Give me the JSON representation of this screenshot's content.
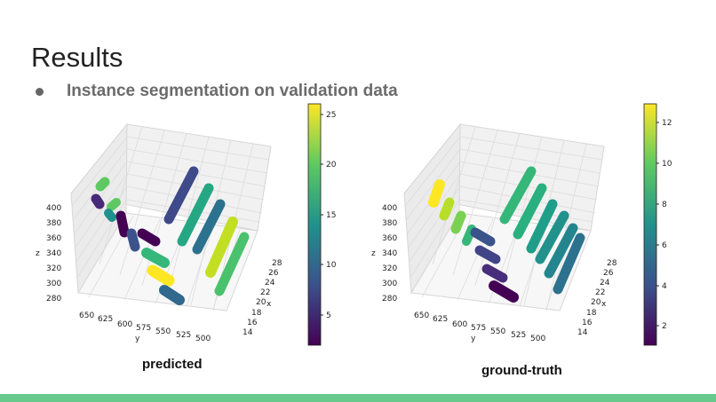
{
  "slide": {
    "title": "Results",
    "bullet": "Instance segmentation on validation data"
  },
  "colors": {
    "footer": "#67c98c",
    "bullet_text": "#6b6b6b"
  },
  "plots": [
    {
      "caption": "predicted",
      "z_ticks": [
        "400",
        "380",
        "360",
        "340",
        "320",
        "300",
        "280"
      ],
      "y_ticks": [
        "650",
        "625",
        "600",
        "575",
        "550",
        "525",
        "500"
      ],
      "x_ticks": [
        "28",
        "26",
        "24",
        "22",
        "20",
        "18",
        "16",
        "14"
      ],
      "x_label": "x",
      "y_label": "y",
      "z_label": "z",
      "colorbar_ticks": [
        "25",
        "20",
        "15",
        "10",
        "5"
      ]
    },
    {
      "caption": "ground-truth",
      "z_ticks": [
        "400",
        "380",
        "360",
        "340",
        "320",
        "300",
        "280"
      ],
      "y_ticks": [
        "650",
        "625",
        "600",
        "575",
        "550",
        "525",
        "500"
      ],
      "x_ticks": [
        "28",
        "26",
        "24",
        "22",
        "20",
        "18",
        "16",
        "14"
      ],
      "x_label": "x",
      "y_label": "y",
      "z_label": "z",
      "colorbar_ticks": [
        "12",
        "10",
        "8",
        "6",
        "4",
        "2"
      ]
    }
  ]
}
